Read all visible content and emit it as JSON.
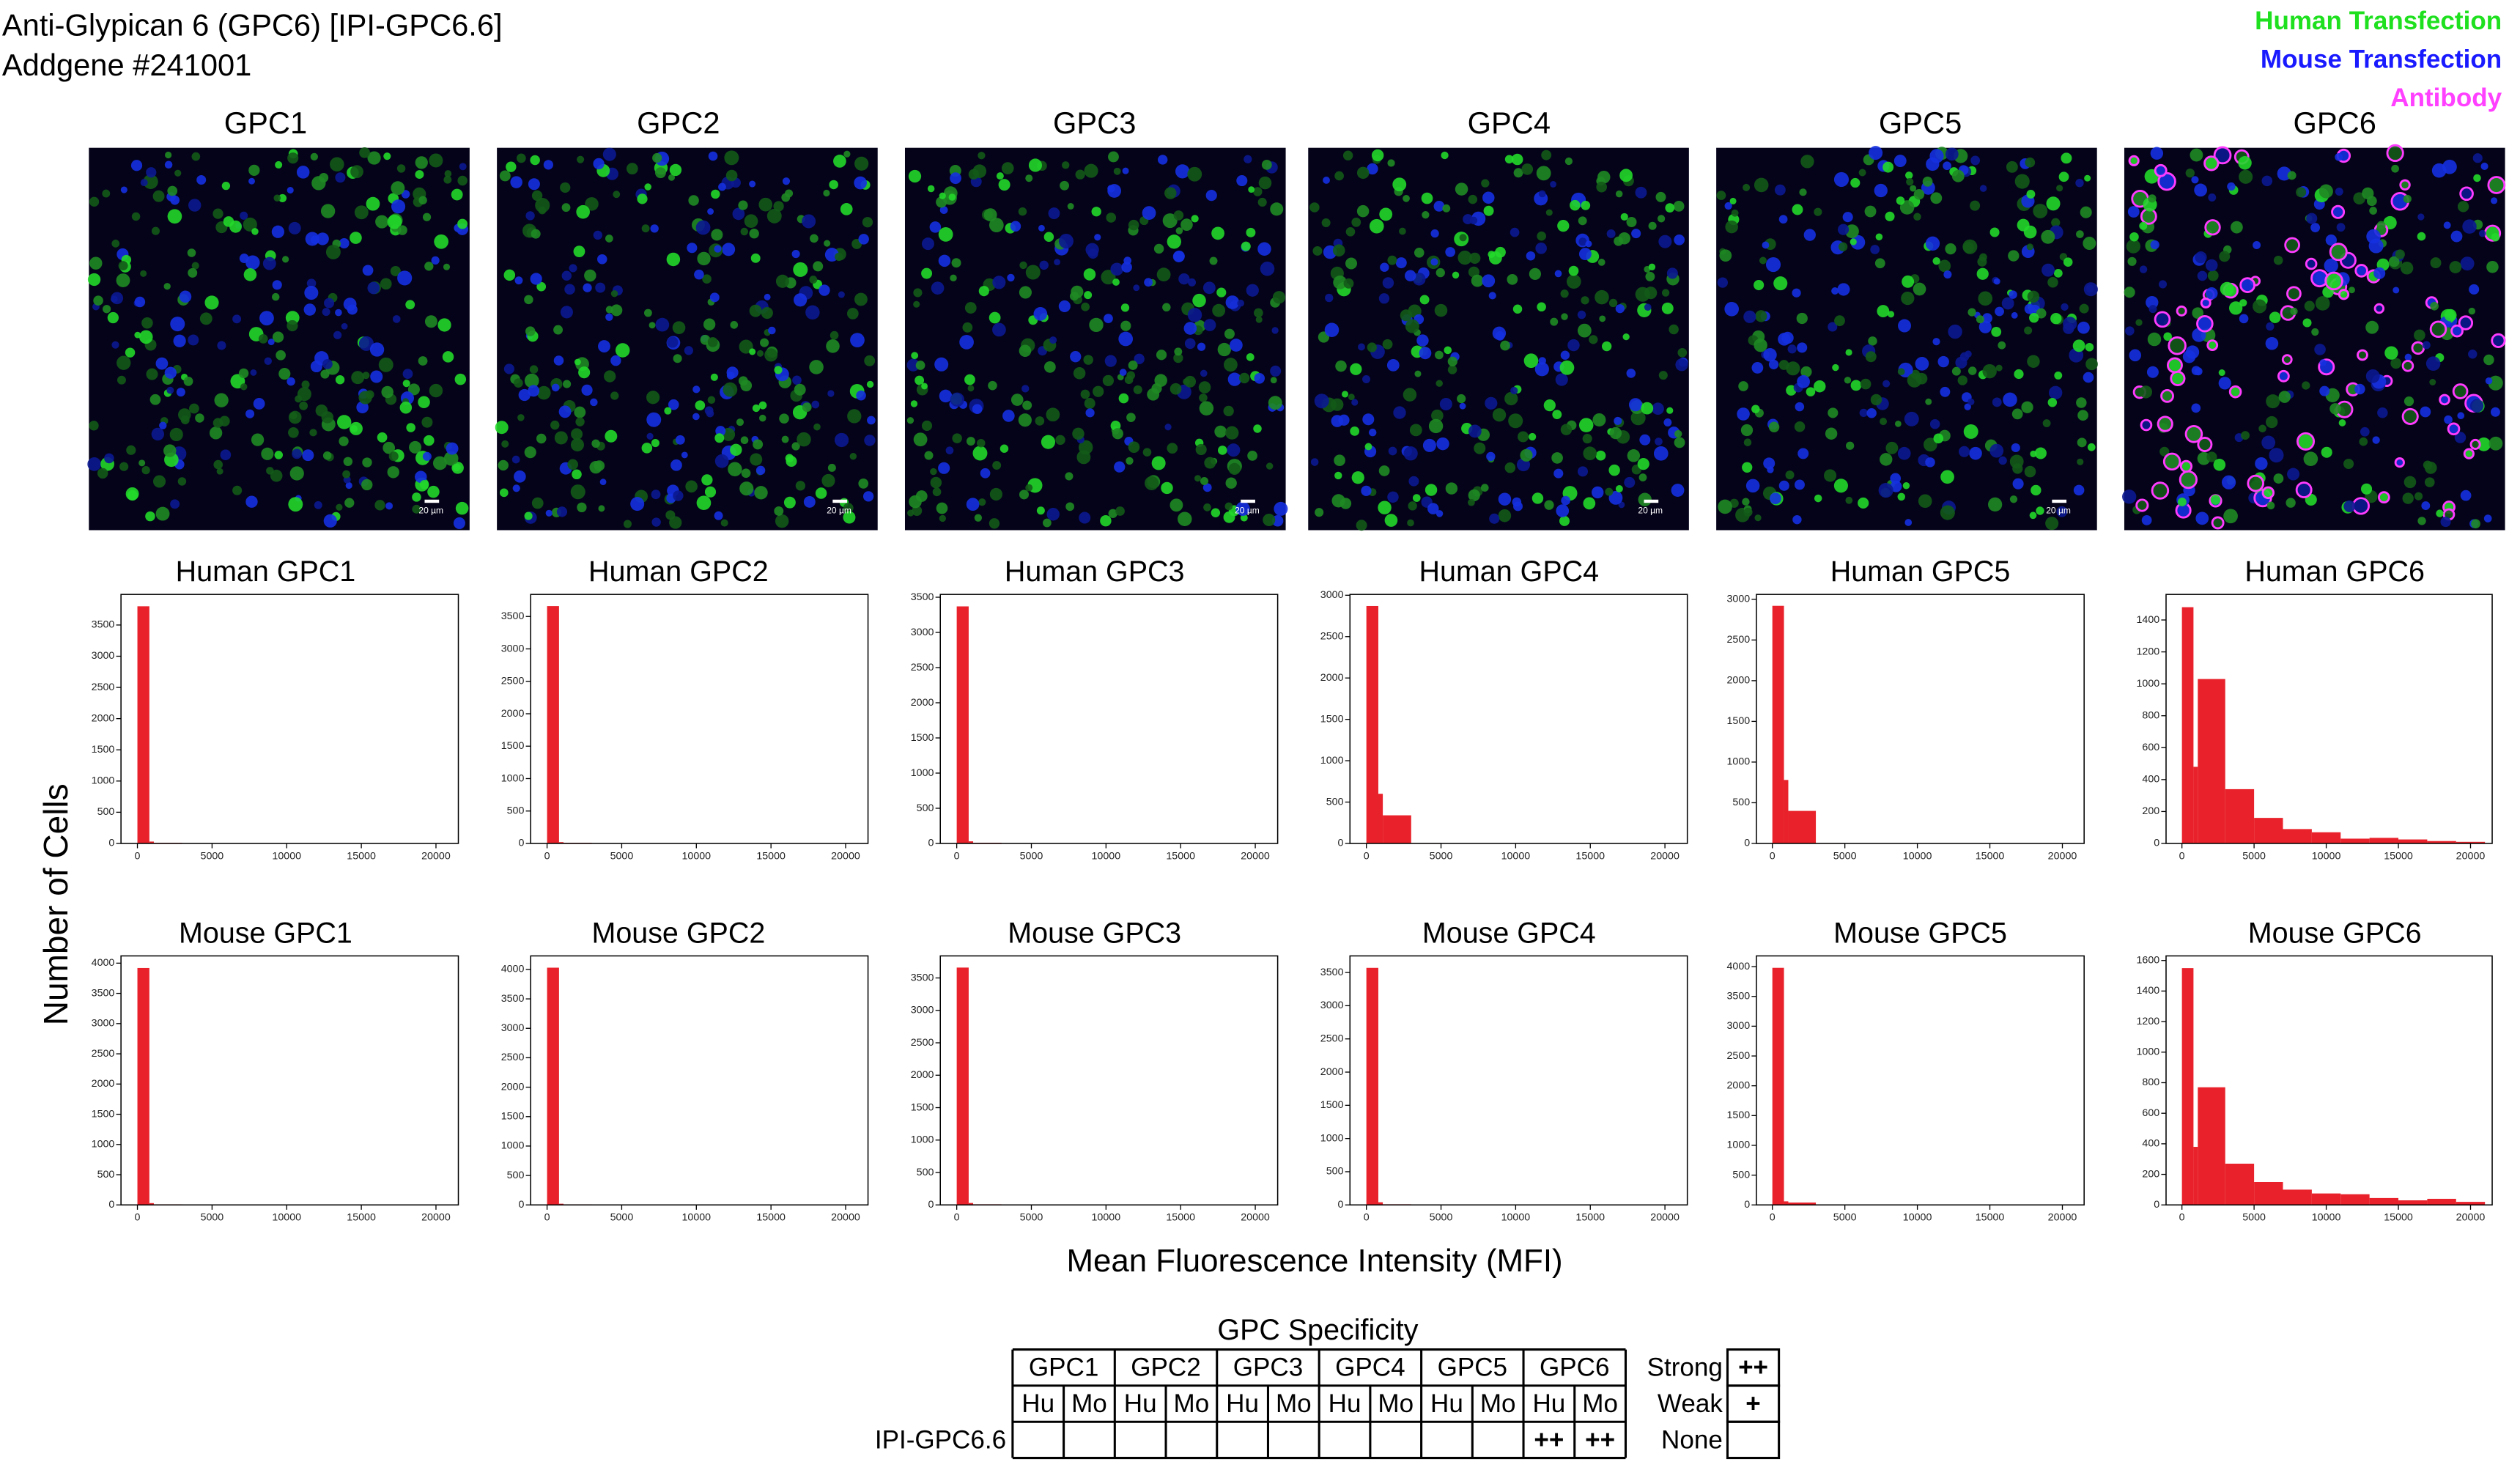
{
  "header": {
    "lines": [
      "Anti-Glypican 6 (GPC6) [IPI-GPC6.6]",
      "Addgene #241001"
    ]
  },
  "legend": [
    {
      "label": "Human Transfection",
      "color": "#1fe01f"
    },
    {
      "label": "Mouse Transfection",
      "color": "#1a1aff"
    },
    {
      "label": "Antibody",
      "color": "#ff40ff"
    }
  ],
  "images": [
    {
      "title": "GPC1",
      "scale_bar": "20 µm"
    },
    {
      "title": "GPC2",
      "scale_bar": "20 µm"
    },
    {
      "title": "GPC3",
      "scale_bar": "20 µm"
    },
    {
      "title": "GPC4",
      "scale_bar": "20 µm"
    },
    {
      "title": "GPC5",
      "scale_bar": "20 µm"
    },
    {
      "title": "GPC6"
    }
  ],
  "shared_labels": {
    "y": "Number of Cells",
    "x": "Mean Fluorescence Intensity (MFI)"
  },
  "chart_data": [
    {
      "type": "histogram",
      "title": "Human GPC1",
      "color": "#e8212a",
      "bins": [
        0,
        800,
        1100,
        3000,
        5000,
        7000,
        9000,
        11000,
        13000,
        15000,
        17000,
        19000,
        21000
      ],
      "values": [
        3800,
        30,
        10,
        0,
        0,
        0,
        0,
        0,
        0,
        0,
        0,
        0
      ],
      "xlim": [
        -1100,
        21500
      ],
      "ylim": [
        0,
        3990
      ],
      "xticks": [
        0,
        5000,
        10000,
        15000,
        20000
      ],
      "yticks": [
        0,
        500,
        1000,
        1500,
        2000,
        2500,
        3000,
        3500
      ]
    },
    {
      "type": "histogram",
      "title": "Human GPC2",
      "color": "#e8212a",
      "bins": [
        0,
        800,
        1100,
        3000,
        5000,
        7000,
        9000,
        11000,
        13000,
        15000,
        17000,
        19000,
        21000
      ],
      "values": [
        3660,
        20,
        10,
        0,
        0,
        0,
        0,
        0,
        0,
        0,
        0,
        0
      ],
      "xlim": [
        -1100,
        21500
      ],
      "ylim": [
        0,
        3840
      ],
      "xticks": [
        0,
        5000,
        10000,
        15000,
        20000
      ],
      "yticks": [
        0,
        500,
        1000,
        1500,
        2000,
        2500,
        3000,
        3500
      ]
    },
    {
      "type": "histogram",
      "title": "Human GPC3",
      "color": "#e8212a",
      "bins": [
        0,
        800,
        1100,
        3000,
        5000,
        7000,
        9000,
        11000,
        13000,
        15000,
        17000,
        19000,
        21000
      ],
      "values": [
        3370,
        30,
        10,
        0,
        0,
        0,
        0,
        0,
        0,
        0,
        0,
        0
      ],
      "xlim": [
        -1100,
        21500
      ],
      "ylim": [
        0,
        3540
      ],
      "xticks": [
        0,
        5000,
        10000,
        15000,
        20000
      ],
      "yticks": [
        0,
        500,
        1000,
        1500,
        2000,
        2500,
        3000,
        3500
      ]
    },
    {
      "type": "histogram",
      "title": "Human GPC4",
      "color": "#e8212a",
      "bins": [
        0,
        800,
        1100,
        3000,
        5000,
        7000,
        9000,
        11000,
        13000,
        15000,
        17000,
        19000,
        21000
      ],
      "values": [
        2870,
        600,
        340,
        5,
        0,
        0,
        0,
        0,
        0,
        0,
        0,
        0
      ],
      "xlim": [
        -1100,
        21500
      ],
      "ylim": [
        0,
        3010
      ],
      "xticks": [
        0,
        5000,
        10000,
        15000,
        20000
      ],
      "yticks": [
        0,
        500,
        1000,
        1500,
        2000,
        2500,
        3000
      ]
    },
    {
      "type": "histogram",
      "title": "Human GPC5",
      "color": "#e8212a",
      "bins": [
        0,
        800,
        1100,
        3000,
        5000,
        7000,
        9000,
        11000,
        13000,
        15000,
        17000,
        19000,
        21000
      ],
      "values": [
        2920,
        780,
        400,
        5,
        0,
        0,
        0,
        0,
        0,
        0,
        0,
        0
      ],
      "xlim": [
        -1100,
        21500
      ],
      "ylim": [
        0,
        3060
      ],
      "xticks": [
        0,
        5000,
        10000,
        15000,
        20000
      ],
      "yticks": [
        0,
        500,
        1000,
        1500,
        2000,
        2500,
        3000
      ]
    },
    {
      "type": "histogram",
      "title": "Human GPC6",
      "color": "#e8212a",
      "bins": [
        0,
        800,
        1100,
        3000,
        5000,
        7000,
        9000,
        11000,
        13000,
        15000,
        17000,
        19000,
        21000
      ],
      "values": [
        1480,
        480,
        1030,
        340,
        160,
        90,
        70,
        30,
        35,
        25,
        15,
        10
      ],
      "xlim": [
        -1100,
        21500
      ],
      "ylim": [
        0,
        1560
      ],
      "xticks": [
        0,
        5000,
        10000,
        15000,
        20000
      ],
      "yticks": [
        0,
        200,
        400,
        600,
        800,
        1000,
        1200,
        1400
      ]
    },
    {
      "type": "histogram",
      "title": "Mouse GPC1",
      "color": "#e8212a",
      "bins": [
        0,
        800,
        1100,
        3000,
        5000,
        7000,
        9000,
        11000,
        13000,
        15000,
        17000,
        19000,
        21000
      ],
      "values": [
        3920,
        30,
        10,
        0,
        0,
        0,
        0,
        0,
        0,
        0,
        0,
        0
      ],
      "xlim": [
        -1100,
        21500
      ],
      "ylim": [
        0,
        4120
      ],
      "xticks": [
        0,
        5000,
        10000,
        15000,
        20000
      ],
      "yticks": [
        0,
        500,
        1000,
        1500,
        2000,
        2500,
        3000,
        3500,
        4000
      ]
    },
    {
      "type": "histogram",
      "title": "Mouse GPC2",
      "color": "#e8212a",
      "bins": [
        0,
        800,
        1100,
        3000,
        5000,
        7000,
        9000,
        11000,
        13000,
        15000,
        17000,
        19000,
        21000
      ],
      "values": [
        4030,
        20,
        10,
        0,
        0,
        0,
        0,
        0,
        0,
        0,
        0,
        0
      ],
      "xlim": [
        -1100,
        21500
      ],
      "ylim": [
        0,
        4230
      ],
      "xticks": [
        0,
        5000,
        10000,
        15000,
        20000
      ],
      "yticks": [
        0,
        500,
        1000,
        1500,
        2000,
        2500,
        3000,
        3500,
        4000
      ]
    },
    {
      "type": "histogram",
      "title": "Mouse GPC3",
      "color": "#e8212a",
      "bins": [
        0,
        800,
        1100,
        3000,
        5000,
        7000,
        9000,
        11000,
        13000,
        15000,
        17000,
        19000,
        21000
      ],
      "values": [
        3660,
        30,
        10,
        0,
        0,
        0,
        0,
        0,
        0,
        0,
        0,
        0
      ],
      "xlim": [
        -1100,
        21500
      ],
      "ylim": [
        0,
        3840
      ],
      "xticks": [
        0,
        5000,
        10000,
        15000,
        20000
      ],
      "yticks": [
        0,
        500,
        1000,
        1500,
        2000,
        2500,
        3000,
        3500
      ]
    },
    {
      "type": "histogram",
      "title": "Mouse GPC4",
      "color": "#e8212a",
      "bins": [
        0,
        800,
        1100,
        3000,
        5000,
        7000,
        9000,
        11000,
        13000,
        15000,
        17000,
        19000,
        21000
      ],
      "values": [
        3570,
        40,
        10,
        0,
        0,
        0,
        0,
        0,
        0,
        0,
        0,
        0
      ],
      "xlim": [
        -1100,
        21500
      ],
      "ylim": [
        0,
        3750
      ],
      "xticks": [
        0,
        5000,
        10000,
        15000,
        20000
      ],
      "yticks": [
        0,
        500,
        1000,
        1500,
        2000,
        2500,
        3000,
        3500
      ]
    },
    {
      "type": "histogram",
      "title": "Mouse GPC5",
      "color": "#e8212a",
      "bins": [
        0,
        800,
        1100,
        3000,
        5000,
        7000,
        9000,
        11000,
        13000,
        15000,
        17000,
        19000,
        21000
      ],
      "values": [
        3980,
        60,
        40,
        0,
        0,
        0,
        0,
        0,
        0,
        0,
        0,
        0
      ],
      "xlim": [
        -1100,
        21500
      ],
      "ylim": [
        0,
        4180
      ],
      "xticks": [
        0,
        5000,
        10000,
        15000,
        20000
      ],
      "yticks": [
        0,
        500,
        1000,
        1500,
        2000,
        2500,
        3000,
        3500,
        4000
      ]
    },
    {
      "type": "histogram",
      "title": "Mouse GPC6",
      "color": "#e8212a",
      "bins": [
        0,
        800,
        1100,
        3000,
        5000,
        7000,
        9000,
        11000,
        13000,
        15000,
        17000,
        19000,
        21000
      ],
      "values": [
        1550,
        380,
        770,
        270,
        150,
        100,
        75,
        70,
        45,
        30,
        40,
        20
      ],
      "xlim": [
        -1100,
        21500
      ],
      "ylim": [
        0,
        1630
      ],
      "xticks": [
        0,
        5000,
        10000,
        15000,
        20000
      ],
      "yticks": [
        0,
        200,
        400,
        600,
        800,
        1000,
        1200,
        1400,
        1600
      ]
    }
  ],
  "table": {
    "title": "GPC Specificity",
    "groups": [
      "GPC1",
      "GPC2",
      "GPC3",
      "GPC4",
      "GPC5",
      "GPC6"
    ],
    "subheaders": [
      "Hu",
      "Mo",
      "Hu",
      "Mo",
      "Hu",
      "Mo",
      "Hu",
      "Mo",
      "Hu",
      "Mo",
      "Hu",
      "Mo"
    ],
    "rows": [
      {
        "label": "IPI-GPC6.6",
        "cells": [
          null,
          null,
          null,
          null,
          null,
          null,
          null,
          null,
          null,
          null,
          "++",
          "++"
        ]
      }
    ],
    "key": [
      {
        "label": "Strong",
        "symbol": "++"
      },
      {
        "label": "Weak",
        "symbol": "+"
      },
      {
        "label": "None"
      }
    ]
  }
}
